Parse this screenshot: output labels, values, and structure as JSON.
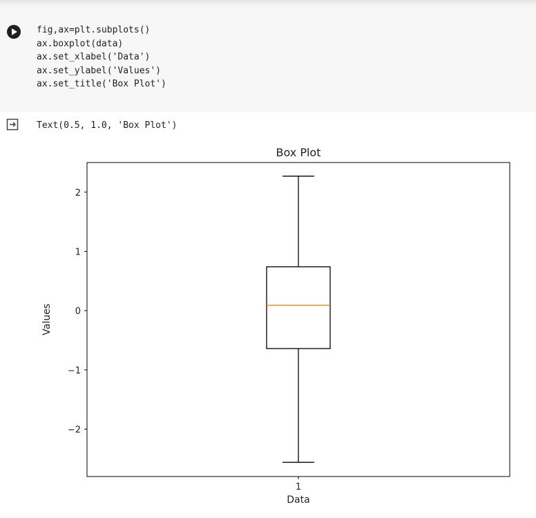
{
  "cell": {
    "code_lines": [
      "fig,ax=plt.subplots()",
      "ax.boxplot(data)",
      "ax.set_xlabel('Data')",
      "ax.set_ylabel('Values')",
      "ax.set_title('Box Plot')"
    ],
    "run_icon": "play-icon"
  },
  "output": {
    "icon": "output-redirect-icon",
    "text": "Text(0.5, 1.0, 'Box Plot')"
  },
  "chart_data": {
    "type": "box",
    "title": "Box Plot",
    "xlabel": "Data",
    "ylabel": "Values",
    "categories": [
      "1"
    ],
    "boxes": [
      {
        "name": "1",
        "whisker_low": -2.56,
        "q1": -0.64,
        "median": 0.09,
        "q3": 0.74,
        "whisker_high": 2.27
      }
    ],
    "ylim": [
      -2.8,
      2.5
    ],
    "yticks": [
      -2,
      -1,
      0,
      1,
      2
    ],
    "ytick_labels": [
      "−2",
      "−1",
      "0",
      "1",
      "2"
    ],
    "grid": false,
    "colors": {
      "box": "#000000",
      "median": "#ff7f0e"
    }
  }
}
